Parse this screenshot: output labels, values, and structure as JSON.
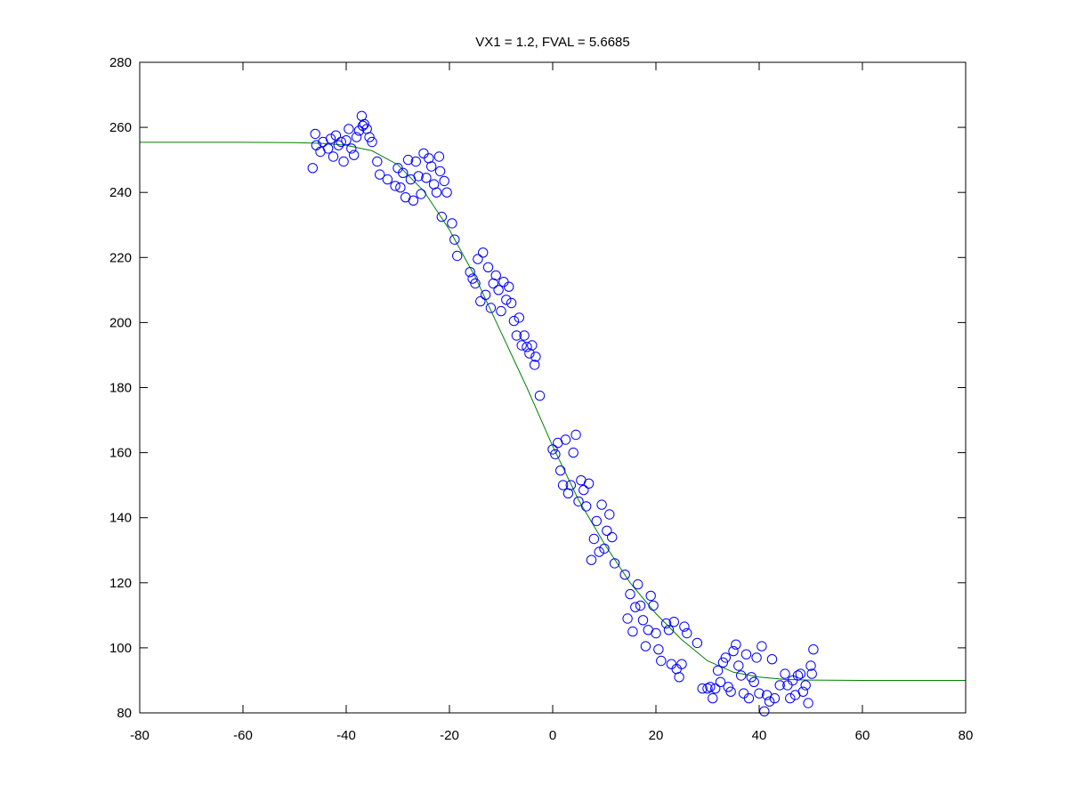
{
  "chart_data": {
    "type": "scatter",
    "title": "VX1 = 1.2, FVAL = 5.6685",
    "xlabel": "",
    "ylabel": "",
    "xlim": [
      -80,
      80
    ],
    "ylim": [
      80,
      280
    ],
    "xticks": [
      -80,
      -60,
      -40,
      -20,
      0,
      20,
      40,
      60,
      80
    ],
    "yticks": [
      80,
      100,
      120,
      140,
      160,
      180,
      200,
      220,
      240,
      260,
      280
    ],
    "grid": false,
    "legend": "none",
    "series": [
      {
        "kind": "points",
        "marker": "circle-open",
        "color": "#0000ff",
        "points": [
          [
            -46.5,
            247.5
          ],
          [
            -46,
            258
          ],
          [
            -45.8,
            254.5
          ],
          [
            -45,
            252.5
          ],
          [
            -44.5,
            255.5
          ],
          [
            -43.5,
            253.5
          ],
          [
            -43,
            256.5
          ],
          [
            -42.5,
            251
          ],
          [
            -42,
            257.5
          ],
          [
            -41.5,
            254.5
          ],
          [
            -41,
            255.5
          ],
          [
            -40.5,
            249.5
          ],
          [
            -40,
            256
          ],
          [
            -39.5,
            259.5
          ],
          [
            -39,
            253.5
          ],
          [
            -38.5,
            251.5
          ],
          [
            -38,
            257
          ],
          [
            -37.5,
            259
          ],
          [
            -37,
            263.5
          ],
          [
            -36.8,
            260.5
          ],
          [
            -36.5,
            261
          ],
          [
            -36,
            259.5
          ],
          [
            -35.5,
            257
          ],
          [
            -35,
            255.5
          ],
          [
            -34,
            249.5
          ],
          [
            -33.5,
            245.5
          ],
          [
            -32,
            244
          ],
          [
            -30.5,
            242
          ],
          [
            -30,
            247.5
          ],
          [
            -29.5,
            241.5
          ],
          [
            -29,
            246
          ],
          [
            -28.5,
            238.5
          ],
          [
            -28,
            250
          ],
          [
            -27.5,
            244
          ],
          [
            -27,
            237.5
          ],
          [
            -26.5,
            249.5
          ],
          [
            -26,
            245
          ],
          [
            -25.5,
            239.5
          ],
          [
            -25,
            252
          ],
          [
            -24.5,
            244.5
          ],
          [
            -24,
            250.5
          ],
          [
            -23.5,
            248
          ],
          [
            -23,
            242.5
          ],
          [
            -22.5,
            240
          ],
          [
            -22,
            251
          ],
          [
            -21.8,
            246.5
          ],
          [
            -21.5,
            232.5
          ],
          [
            -21,
            243.5
          ],
          [
            -20.5,
            240
          ],
          [
            -19.5,
            230.5
          ],
          [
            -19,
            225.5
          ],
          [
            -18.5,
            220.5
          ],
          [
            -16,
            215.5
          ],
          [
            -15.5,
            213.5
          ],
          [
            -15,
            212
          ],
          [
            -14.5,
            219.5
          ],
          [
            -14,
            206.5
          ],
          [
            -13.5,
            221.5
          ],
          [
            -13,
            208.5
          ],
          [
            -12.5,
            217
          ],
          [
            -12,
            204.5
          ],
          [
            -11.5,
            212
          ],
          [
            -11,
            214.5
          ],
          [
            -10.5,
            210
          ],
          [
            -10,
            203.5
          ],
          [
            -9.5,
            212.5
          ],
          [
            -9,
            207
          ],
          [
            -8.5,
            211
          ],
          [
            -8,
            206
          ],
          [
            -7.5,
            200.5
          ],
          [
            -7,
            196
          ],
          [
            -6.5,
            201.5
          ],
          [
            -6,
            193
          ],
          [
            -5.5,
            196
          ],
          [
            -5,
            192.5
          ],
          [
            -4.5,
            190.5
          ],
          [
            -4,
            193
          ],
          [
            -3.5,
            187
          ],
          [
            -3.3,
            189.5
          ],
          [
            -2.5,
            177.5
          ],
          [
            0,
            161
          ],
          [
            0.5,
            159.5
          ],
          [
            1,
            163
          ],
          [
            1.5,
            154.5
          ],
          [
            2,
            150
          ],
          [
            2.5,
            164
          ],
          [
            3,
            147.5
          ],
          [
            3.5,
            150
          ],
          [
            4,
            160
          ],
          [
            4.5,
            165.5
          ],
          [
            5,
            145
          ],
          [
            5.5,
            151.5
          ],
          [
            6,
            148.5
          ],
          [
            6.5,
            143.5
          ],
          [
            7,
            150.5
          ],
          [
            7.5,
            127
          ],
          [
            8,
            133.5
          ],
          [
            8.5,
            139
          ],
          [
            9,
            129.5
          ],
          [
            9.5,
            144
          ],
          [
            10,
            130.5
          ],
          [
            10.5,
            136
          ],
          [
            11,
            141
          ],
          [
            11.5,
            134
          ],
          [
            12,
            126
          ],
          [
            14,
            122.5
          ],
          [
            14.5,
            109
          ],
          [
            15,
            116.5
          ],
          [
            15.5,
            105
          ],
          [
            16,
            112.5
          ],
          [
            16.5,
            119.5
          ],
          [
            17,
            113
          ],
          [
            17.5,
            108.5
          ],
          [
            18,
            100.5
          ],
          [
            18.5,
            105.5
          ],
          [
            19,
            116
          ],
          [
            19.5,
            113
          ],
          [
            20,
            104.5
          ],
          [
            20.5,
            99.5
          ],
          [
            21,
            96
          ],
          [
            22,
            107.5
          ],
          [
            22.5,
            105.5
          ],
          [
            23,
            95
          ],
          [
            23.5,
            108
          ],
          [
            24,
            93.5
          ],
          [
            24.5,
            91
          ],
          [
            25,
            95
          ],
          [
            25.5,
            106.5
          ],
          [
            26,
            104.5
          ],
          [
            28,
            101.5
          ],
          [
            29,
            87.5
          ],
          [
            30,
            87.5
          ],
          [
            30.5,
            88
          ],
          [
            31,
            84.5
          ],
          [
            31.5,
            87.5
          ],
          [
            32,
            93
          ],
          [
            32.5,
            89.5
          ],
          [
            33,
            95.5
          ],
          [
            33.5,
            97
          ],
          [
            34,
            88
          ],
          [
            34.5,
            86.5
          ],
          [
            35,
            99
          ],
          [
            35.5,
            101
          ],
          [
            36,
            94.5
          ],
          [
            36.5,
            91.5
          ],
          [
            37,
            86
          ],
          [
            37.5,
            98
          ],
          [
            38,
            84.5
          ],
          [
            38.5,
            91
          ],
          [
            39,
            89.5
          ],
          [
            39.5,
            97
          ],
          [
            40,
            86
          ],
          [
            40.5,
            100.5
          ],
          [
            41,
            80.5
          ],
          [
            41.5,
            85.5
          ],
          [
            42,
            83.5
          ],
          [
            42.5,
            96.5
          ],
          [
            43,
            84.5
          ],
          [
            44,
            88.5
          ],
          [
            45,
            92
          ],
          [
            45.5,
            88.5
          ],
          [
            46,
            84.5
          ],
          [
            46.5,
            90
          ],
          [
            47,
            85.5
          ],
          [
            47.5,
            91.5
          ],
          [
            48,
            92
          ],
          [
            48.5,
            86.5
          ],
          [
            49,
            88.5
          ],
          [
            49.5,
            83
          ],
          [
            50,
            94.5
          ],
          [
            50.2,
            92
          ],
          [
            50.5,
            99.5
          ]
        ]
      },
      {
        "kind": "curve",
        "color": "#008000",
        "x": [
          -80,
          -60,
          -50,
          -45,
          -40,
          -35,
          -30,
          -25,
          -20,
          -15,
          -10,
          -5,
          0,
          5,
          10,
          15,
          20,
          25,
          30,
          35,
          40,
          45,
          50,
          60,
          80
        ],
        "y": [
          255.4,
          255.4,
          255.3,
          255.1,
          254.5,
          252.8,
          248.5,
          240.5,
          228.5,
          214,
          197,
          180,
          162,
          145.5,
          132,
          120,
          110.5,
          102.5,
          96,
          92.5,
          91,
          90.3,
          90.1,
          90,
          90
        ]
      }
    ]
  }
}
